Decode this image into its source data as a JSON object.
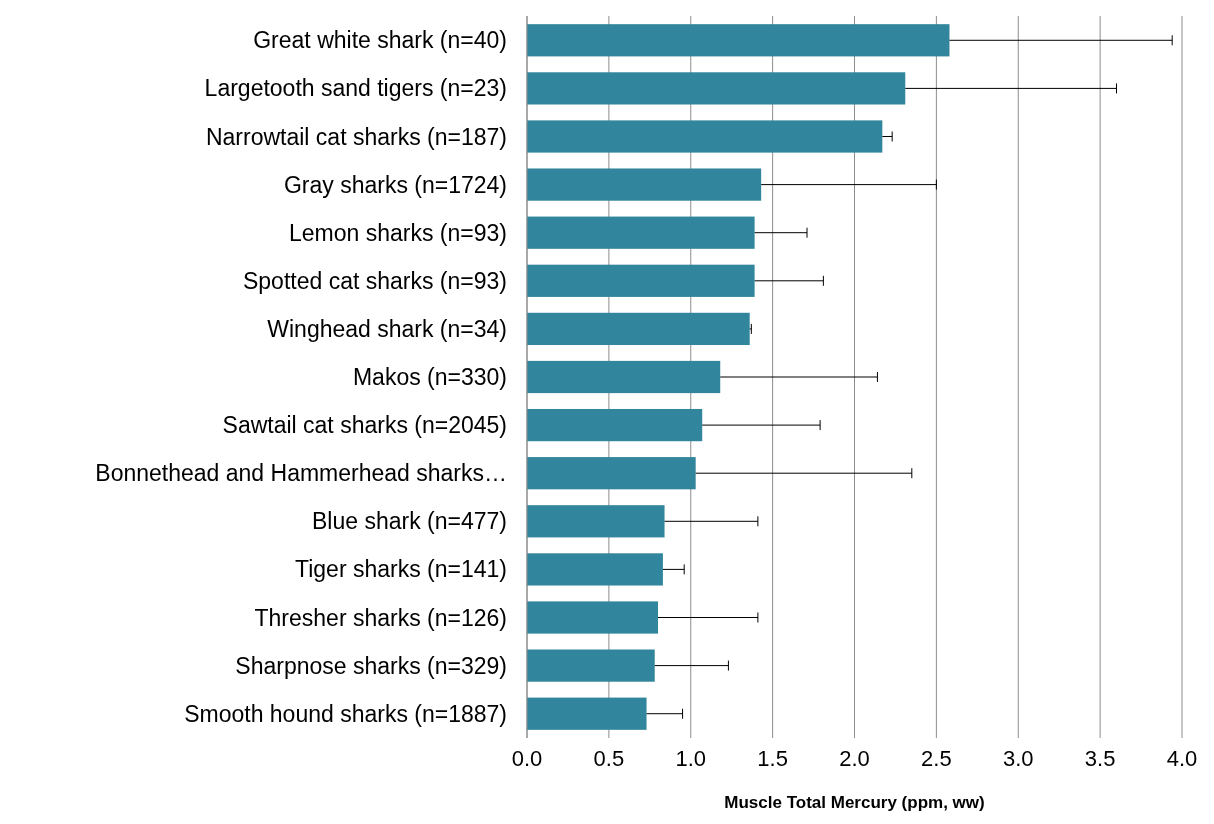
{
  "chart_data": {
    "type": "bar",
    "orientation": "horizontal",
    "xlabel": "Muscle Total Mercury (ppm, ww)",
    "categories": [
      "Great white shark (n=40)",
      "Largetooth sand tigers (n=23)",
      "Narrowtail cat sharks (n=187)",
      "Gray sharks (n=1724)",
      "Lemon sharks (n=93)",
      "Spotted cat sharks (n=93)",
      "Winghead shark (n=34)",
      "Makos (n=330)",
      "Sawtail cat sharks (n=2045)",
      "Bonnethead and Hammerhead sharks…",
      "Blue shark (n=477)",
      "Tiger sharks (n=141)",
      "Thresher sharks (n=126)",
      "Sharpnose sharks (n=329)",
      "Smooth hound sharks (n=1887)"
    ],
    "values": [
      2.58,
      2.31,
      2.17,
      1.43,
      1.39,
      1.39,
      1.36,
      1.18,
      1.07,
      1.03,
      0.84,
      0.83,
      0.8,
      0.78,
      0.73
    ],
    "errors": [
      [
        2.58,
        3.94
      ],
      [
        2.31,
        3.6
      ],
      [
        2.17,
        2.23
      ],
      [
        1.43,
        2.5
      ],
      [
        1.39,
        1.71
      ],
      [
        1.39,
        1.81
      ],
      [
        1.36,
        1.37
      ],
      [
        1.18,
        2.14
      ],
      [
        1.07,
        1.79
      ],
      [
        1.03,
        2.35
      ],
      [
        0.84,
        1.41
      ],
      [
        0.83,
        0.96
      ],
      [
        0.8,
        1.41
      ],
      [
        0.78,
        1.23
      ],
      [
        0.73,
        0.95
      ]
    ],
    "color": "#31859c",
    "xlim": [
      0,
      4
    ],
    "xticks": [
      {
        "value": 0,
        "label": "0.0"
      },
      0.5,
      {
        "value": 1,
        "label": "1.0"
      },
      1.5,
      {
        "value": 2,
        "label": "2.0"
      },
      2.5,
      {
        "value": 3,
        "label": "3.0"
      },
      3.5,
      {
        "value": 4,
        "label": "4.0"
      }
    ],
    "grid": "x"
  }
}
